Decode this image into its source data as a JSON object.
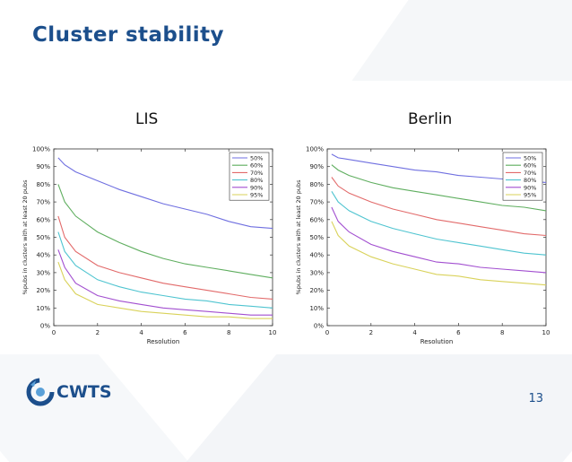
{
  "slide": {
    "title": "Cluster stability",
    "page_number": "13",
    "logo_text": "CWTS"
  },
  "chart_data": [
    {
      "type": "line",
      "title": "LIS",
      "xlabel": "Resolution",
      "ylabel": "%pubs in clusters with at least 20 pubs",
      "xlim": [
        0,
        10
      ],
      "ylim": [
        0,
        100
      ],
      "x_ticks": [
        "0",
        "2",
        "4",
        "6",
        "8",
        "10"
      ],
      "y_ticks": [
        "0%",
        "10%",
        "20%",
        "30%",
        "40%",
        "50%",
        "60%",
        "70%",
        "80%",
        "90%",
        "100%"
      ],
      "grid": false,
      "legend_position": "top-right",
      "x": [
        0.2,
        0.5,
        1,
        2,
        3,
        4,
        5,
        6,
        7,
        8,
        9,
        10
      ],
      "series": [
        {
          "name": "50%",
          "color": "#6f6fe0",
          "values": [
            95,
            91,
            87,
            82,
            77,
            73,
            69,
            66,
            63,
            59,
            56,
            55
          ]
        },
        {
          "name": "60%",
          "color": "#5fae5f",
          "values": [
            80,
            70,
            62,
            53,
            47,
            42,
            38,
            35,
            33,
            31,
            29,
            27
          ]
        },
        {
          "name": "70%",
          "color": "#e26a6a",
          "values": [
            62,
            50,
            42,
            34,
            30,
            27,
            24,
            22,
            20,
            18,
            16,
            15
          ]
        },
        {
          "name": "80%",
          "color": "#4fc4d0",
          "values": [
            53,
            42,
            34,
            26,
            22,
            19,
            17,
            15,
            14,
            12,
            11,
            10
          ]
        },
        {
          "name": "90%",
          "color": "#a24fd0",
          "values": [
            43,
            33,
            24,
            17,
            14,
            12,
            10,
            9,
            8,
            7,
            6,
            6
          ]
        },
        {
          "name": "95%",
          "color": "#d9d25a",
          "values": [
            36,
            26,
            18,
            12,
            10,
            8,
            7,
            6,
            5,
            5,
            4,
            4
          ]
        }
      ]
    },
    {
      "type": "line",
      "title": "Berlin",
      "xlabel": "Resolution",
      "ylabel": "%pubs in clusters with at least 20 pubs",
      "xlim": [
        0,
        10
      ],
      "ylim": [
        0,
        100
      ],
      "x_ticks": [
        "0",
        "2",
        "4",
        "6",
        "8",
        "10"
      ],
      "y_ticks": [
        "0%",
        "10%",
        "20%",
        "30%",
        "40%",
        "50%",
        "60%",
        "70%",
        "80%",
        "90%",
        "100%"
      ],
      "grid": false,
      "legend_position": "top-right",
      "x": [
        0.2,
        0.5,
        1,
        2,
        3,
        4,
        5,
        6,
        7,
        8,
        9,
        10
      ],
      "series": [
        {
          "name": "50%",
          "color": "#6f6fe0",
          "values": [
            97,
            95,
            94,
            92,
            90,
            88,
            87,
            85,
            84,
            83,
            82,
            81
          ]
        },
        {
          "name": "60%",
          "color": "#5fae5f",
          "values": [
            91,
            88,
            85,
            81,
            78,
            76,
            74,
            72,
            70,
            68,
            67,
            65
          ]
        },
        {
          "name": "70%",
          "color": "#e26a6a",
          "values": [
            84,
            79,
            75,
            70,
            66,
            63,
            60,
            58,
            56,
            54,
            52,
            51
          ]
        },
        {
          "name": "80%",
          "color": "#4fc4d0",
          "values": [
            76,
            70,
            65,
            59,
            55,
            52,
            49,
            47,
            45,
            43,
            41,
            40
          ]
        },
        {
          "name": "90%",
          "color": "#a24fd0",
          "values": [
            67,
            59,
            53,
            46,
            42,
            39,
            36,
            35,
            33,
            32,
            31,
            30
          ]
        },
        {
          "name": "95%",
          "color": "#d9d25a",
          "values": [
            59,
            51,
            45,
            39,
            35,
            32,
            29,
            28,
            26,
            25,
            24,
            23
          ]
        }
      ]
    }
  ]
}
